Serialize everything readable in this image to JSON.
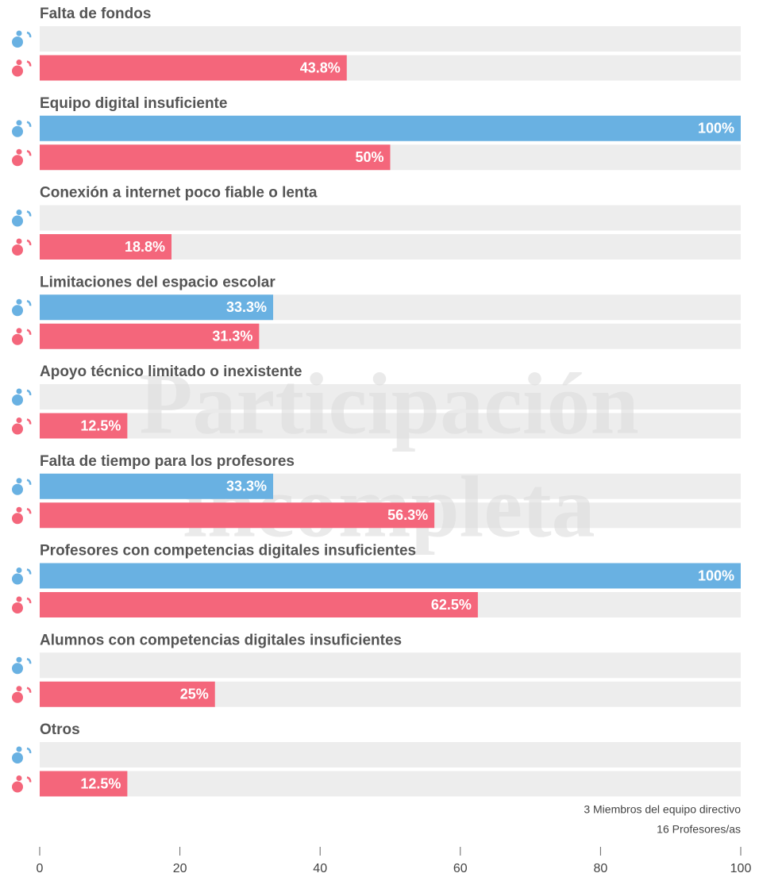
{
  "chart_data": {
    "type": "bar",
    "orientation": "horizontal",
    "categories": [
      "Falta de fondos",
      "Equipo digital insuficiente",
      "Conexión a internet poco fiable o lenta",
      "Limitaciones del espacio escolar",
      "Apoyo técnico limitado o inexistente",
      "Falta de tiempo para los profesores",
      "Profesores con competencias digitales insuficientes",
      "Alumnos con competencias digitales insuficientes",
      "Otros"
    ],
    "series": [
      {
        "name": "3 Miembros del equipo directivo",
        "color": "#69b1e2",
        "values": [
          0,
          100,
          0,
          33.3,
          0,
          33.3,
          100,
          0,
          0
        ],
        "value_labels": [
          null,
          "100%",
          null,
          "33.3%",
          null,
          "33.3%",
          "100%",
          null,
          null
        ]
      },
      {
        "name": "16 Profesores/as",
        "color": "#f4667b",
        "values": [
          43.8,
          50,
          18.8,
          31.3,
          12.5,
          56.3,
          62.5,
          25,
          12.5
        ],
        "value_labels": [
          "43.8%",
          "50%",
          "18.8%",
          "31.3%",
          "12.5%",
          "56.3%",
          "62.5%",
          "25%",
          "12.5%"
        ]
      }
    ],
    "xlim": [
      0,
      100
    ],
    "xticks": [
      0,
      20,
      40,
      60,
      80,
      100
    ],
    "annotations": [
      "Participación",
      "incompleta"
    ]
  }
}
